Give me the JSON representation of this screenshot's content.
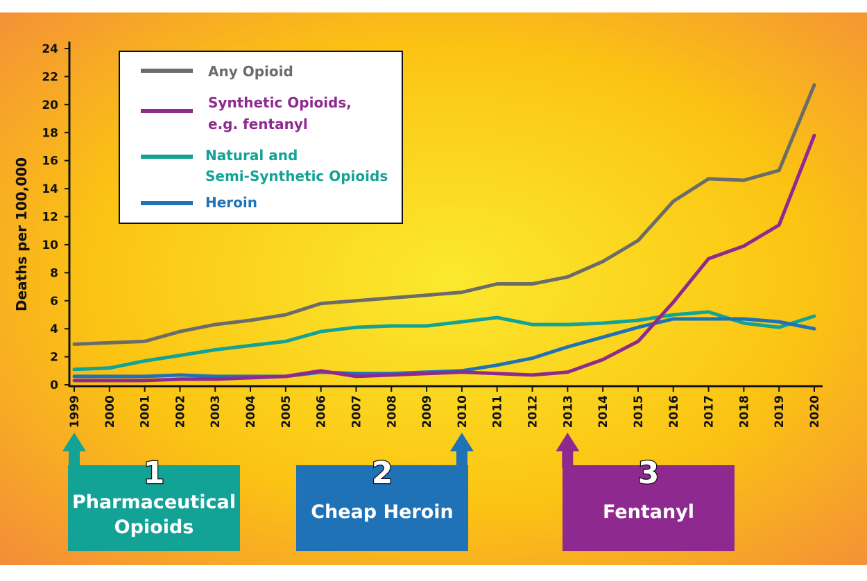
{
  "chart_data": {
    "type": "line",
    "ylabel": "Deaths per 100,000",
    "xlabel": "",
    "ylim": [
      0,
      24
    ],
    "yticks": [
      0,
      2,
      4,
      6,
      8,
      10,
      12,
      14,
      16,
      18,
      20,
      22,
      24
    ],
    "x": [
      1999,
      2000,
      2001,
      2002,
      2003,
      2004,
      2005,
      2006,
      2007,
      2008,
      2009,
      2010,
      2011,
      2012,
      2013,
      2014,
      2015,
      2016,
      2017,
      2018,
      2019,
      2020
    ],
    "grid": false,
    "legend_position": "top-left",
    "series": [
      {
        "name": "Any Opioid",
        "color": "#6b6b6b",
        "values": [
          2.9,
          3.0,
          3.1,
          3.8,
          4.3,
          4.6,
          5.0,
          5.8,
          6.0,
          6.2,
          6.4,
          6.6,
          7.2,
          7.2,
          7.7,
          8.8,
          10.3,
          13.1,
          14.7,
          14.6,
          15.3,
          21.4
        ]
      },
      {
        "name": "Synthetic Opioids, e.g. fentanyl",
        "name_lines": [
          "Synthetic Opioids,",
          "e.g. fentanyl"
        ],
        "color": "#8e2a8f",
        "values": [
          0.3,
          0.3,
          0.3,
          0.4,
          0.4,
          0.5,
          0.6,
          1.0,
          0.6,
          0.7,
          0.8,
          0.9,
          0.8,
          0.7,
          0.9,
          1.8,
          3.1,
          5.9,
          9.0,
          9.9,
          11.4,
          17.8
        ]
      },
      {
        "name": "Natural and Semi-Synthetic Opioids",
        "name_lines": [
          "Natural and",
          "Semi-Synthetic Opioids"
        ],
        "color": "#13a296",
        "values": [
          1.1,
          1.2,
          1.7,
          2.1,
          2.5,
          2.8,
          3.1,
          3.8,
          4.1,
          4.2,
          4.2,
          4.5,
          4.8,
          4.3,
          4.3,
          4.4,
          4.6,
          5.0,
          5.2,
          4.4,
          4.1,
          4.9
        ]
      },
      {
        "name": "Heroin",
        "color": "#1f72b6",
        "values": [
          0.6,
          0.6,
          0.6,
          0.7,
          0.6,
          0.6,
          0.6,
          0.9,
          0.8,
          0.8,
          0.9,
          1.0,
          1.4,
          1.9,
          2.7,
          3.4,
          4.1,
          4.7,
          4.7,
          4.7,
          4.5,
          4.0
        ]
      }
    ],
    "annotations": [
      {
        "number": "1",
        "lines": [
          "Pharmaceutical",
          "Opioids"
        ],
        "year": 1999,
        "color": "#13a296"
      },
      {
        "number": "2",
        "lines": [
          "Cheap Heroin"
        ],
        "year": 2010,
        "color": "#1f72b6"
      },
      {
        "number": "3",
        "lines": [
          "Fentanyl"
        ],
        "year": 2013,
        "color": "#8e2a8f"
      }
    ]
  }
}
